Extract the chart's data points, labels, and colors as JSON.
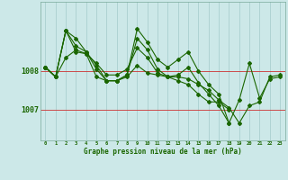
{
  "xlabel": "Graphe pression niveau de la mer (hPa)",
  "background_color": "#cce8e8",
  "plot_bg_color": "#cce8e8",
  "grid_color": "#aacfcf",
  "line_color": "#1a6600",
  "text_color": "#1a6600",
  "yticks": [
    1007,
    1008
  ],
  "ylim": [
    1006.2,
    1009.8
  ],
  "xlim": [
    -0.5,
    23.5
  ],
  "xticks": [
    0,
    1,
    2,
    3,
    4,
    5,
    6,
    7,
    8,
    9,
    10,
    11,
    12,
    13,
    14,
    15,
    16,
    17,
    18,
    19,
    20,
    21,
    22,
    23
  ],
  "series": [
    [
      1008.1,
      1007.85,
      1008.35,
      1008.55,
      1008.45,
      1008.2,
      1007.9,
      1007.9,
      1008.05,
      1008.6,
      1008.35,
      1007.95,
      1007.85,
      1007.85,
      1007.8,
      1007.65,
      1007.5,
      1007.25,
      1007.05,
      1006.65,
      1007.1,
      1007.2,
      1007.85,
      1007.9
    ],
    [
      1008.1,
      1007.85,
      1009.05,
      1008.85,
      1008.5,
      1008.05,
      1007.75,
      1007.75,
      1007.9,
      1009.1,
      1008.75,
      1008.3,
      1008.1,
      1008.3,
      1008.5,
      1008.0,
      1007.65,
      1007.4,
      1006.65,
      null,
      null,
      null,
      null,
      null
    ],
    [
      1008.1,
      1007.85,
      1009.05,
      1008.5,
      1008.45,
      1007.85,
      1007.75,
      1007.75,
      1007.85,
      1008.15,
      1007.95,
      1007.9,
      1007.85,
      1007.75,
      1007.65,
      1007.4,
      1007.2,
      1007.2,
      1007.0,
      null,
      null,
      null,
      null,
      null
    ],
    [
      1008.1,
      1007.85,
      1009.05,
      1008.65,
      1008.5,
      1008.15,
      1007.75,
      1007.75,
      1007.9,
      1008.85,
      1008.55,
      1008.05,
      1007.85,
      1007.9,
      1008.1,
      1007.7,
      1007.4,
      1007.1,
      1006.65,
      1007.25,
      1008.2,
      1007.3,
      1007.8,
      1007.85
    ]
  ]
}
